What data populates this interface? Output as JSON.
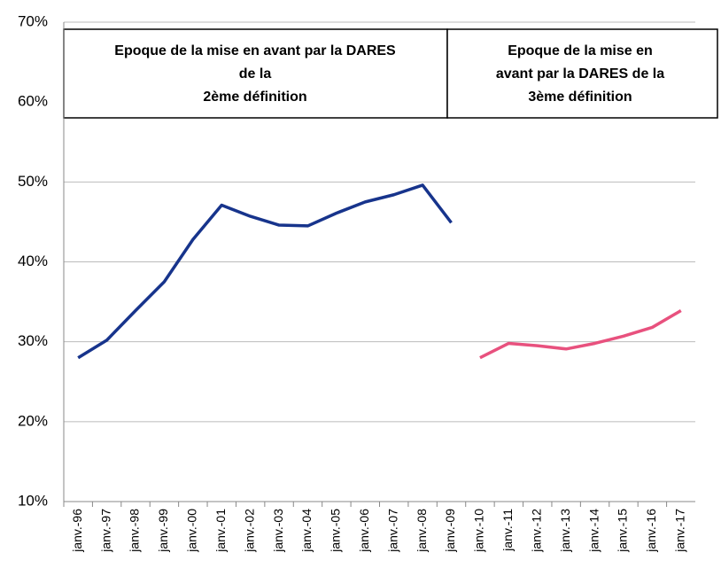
{
  "chart_data": {
    "type": "line",
    "categories": [
      "janv.-96",
      "janv.-97",
      "janv.-98",
      "janv.-99",
      "janv.-00",
      "janv.-01",
      "janv.-02",
      "janv.-03",
      "janv.-04",
      "janv.-05",
      "janv.-06",
      "janv.-07",
      "janv.-08",
      "janv.-09",
      "janv.-10",
      "janv.-11",
      "janv.-12",
      "janv.-13",
      "janv.-14",
      "janv.-15",
      "janv.-16",
      "janv.-17"
    ],
    "series": [
      {
        "color": "#17348c",
        "values": [
          28.0,
          30.2,
          33.9,
          37.5,
          42.8,
          47.1,
          45.7,
          44.6,
          44.5,
          46.1,
          47.5,
          48.4,
          49.6,
          44.9,
          null,
          null,
          null,
          null,
          null,
          null,
          null,
          null
        ]
      },
      {
        "color": "#e8517e",
        "values": [
          null,
          null,
          null,
          null,
          null,
          null,
          null,
          null,
          null,
          null,
          null,
          null,
          null,
          null,
          28.0,
          29.8,
          29.5,
          29.1,
          29.8,
          30.7,
          31.8,
          33.9
        ]
      }
    ],
    "ylim": [
      10,
      70
    ],
    "yticks": [
      {
        "value": 10,
        "label": "10%"
      },
      {
        "value": 20,
        "label": "20%"
      },
      {
        "value": 30,
        "label": "30%"
      },
      {
        "value": 40,
        "label": "40%"
      },
      {
        "value": 50,
        "label": "50%"
      },
      {
        "value": 60,
        "label": "60%"
      },
      {
        "value": 70,
        "label": "70%"
      }
    ],
    "grid": true,
    "annotations": [
      {
        "lines": [
          "Epoque de la mise en avant par la DARES",
          "de la",
          "2ème définition"
        ]
      },
      {
        "lines": [
          "Epoque de la mise en",
          "avant par la DARES de la",
          "3ème définition"
        ]
      }
    ]
  }
}
